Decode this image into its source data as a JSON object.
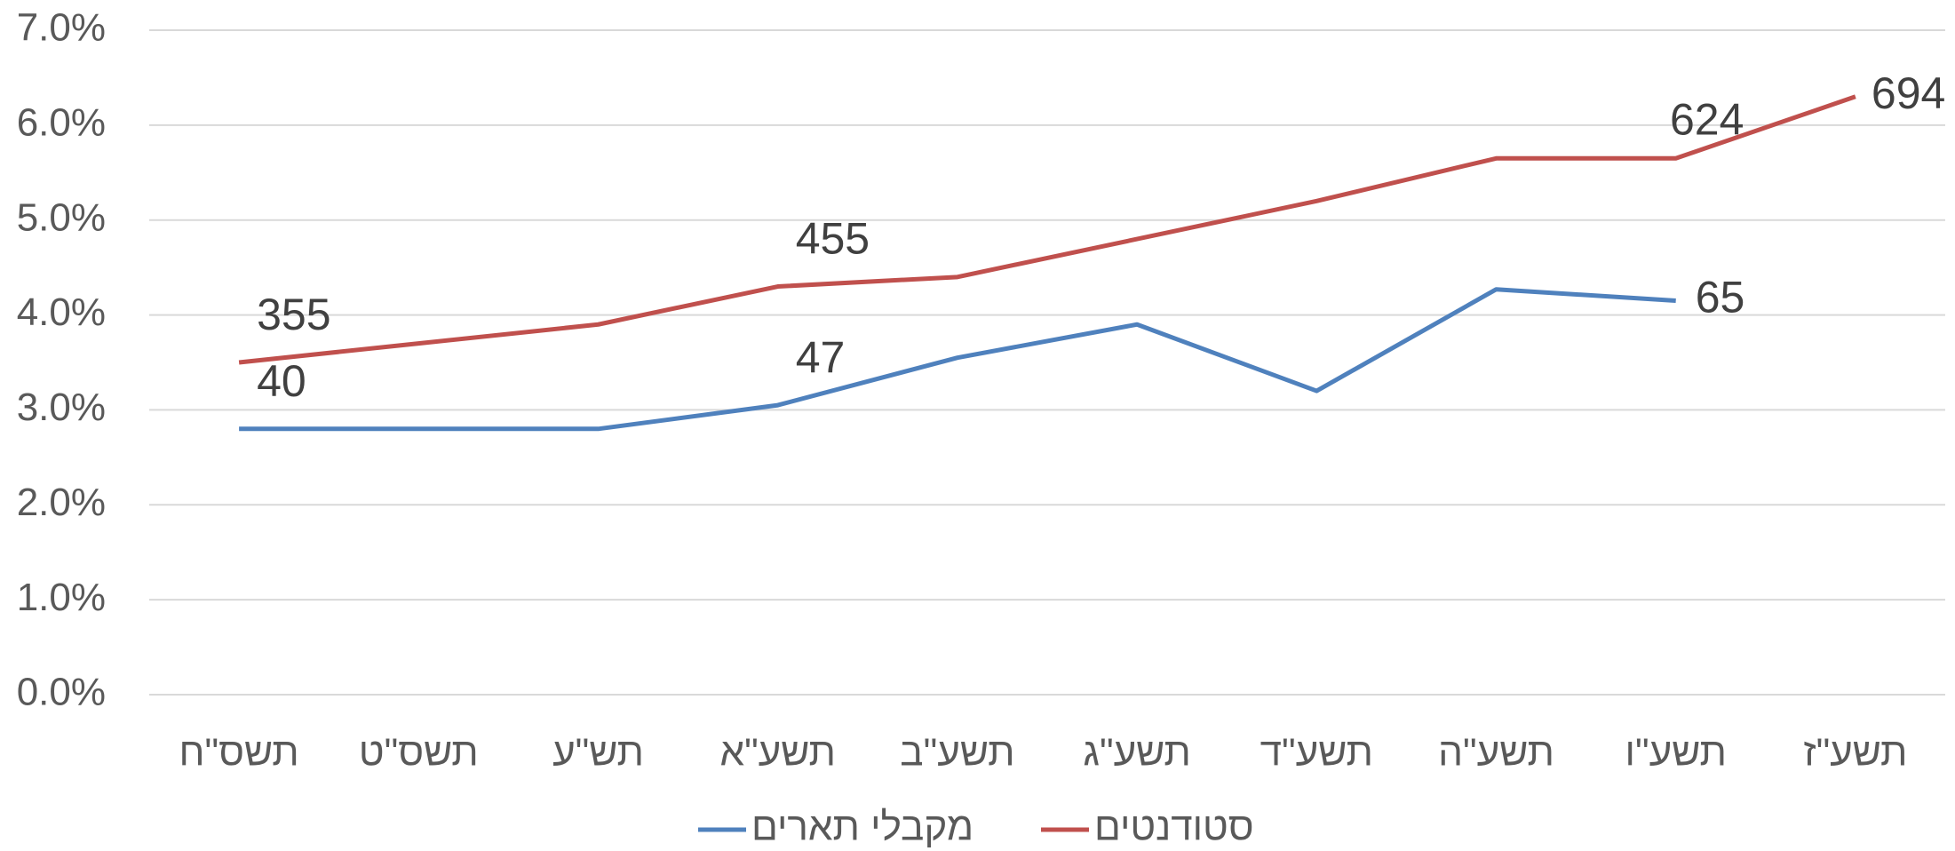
{
  "chart_data": {
    "type": "line",
    "categories": [
      "תשס\"ח",
      "תשס\"ט",
      "תש\"ע",
      "תשע\"א",
      "תשע\"ב",
      "תשע\"ג",
      "תשע\"ד",
      "תשע\"ה",
      "תשע\"ו",
      "תשע\"ז"
    ],
    "series": [
      {
        "name": "מקבלי תארים",
        "color": "#4f81bd",
        "values": [
          2.8,
          2.8,
          2.8,
          3.05,
          3.55,
          3.9,
          3.2,
          4.27,
          4.15,
          null
        ],
        "point_labels": [
          40,
          null,
          null,
          47,
          null,
          null,
          null,
          null,
          65,
          null
        ]
      },
      {
        "name": "סטודנטים",
        "color": "#c0504d",
        "values": [
          3.5,
          3.7,
          3.9,
          4.3,
          4.4,
          4.8,
          5.2,
          5.65,
          5.65,
          6.3
        ],
        "point_labels": [
          355,
          null,
          null,
          455,
          null,
          null,
          null,
          null,
          624,
          694
        ]
      }
    ],
    "ylim": [
      0,
      7
    ],
    "yticks": [
      {
        "value": 0,
        "label": "0.0%"
      },
      {
        "value": 1,
        "label": "1.0%"
      },
      {
        "value": 2,
        "label": "2.0%"
      },
      {
        "value": 3,
        "label": "3.0%"
      },
      {
        "value": 4,
        "label": "4.0%"
      },
      {
        "value": 5,
        "label": "5.0%"
      },
      {
        "value": 6,
        "label": "6.0%"
      },
      {
        "value": 7,
        "label": "7.0%"
      }
    ],
    "grid": true,
    "legend": "bottom"
  }
}
